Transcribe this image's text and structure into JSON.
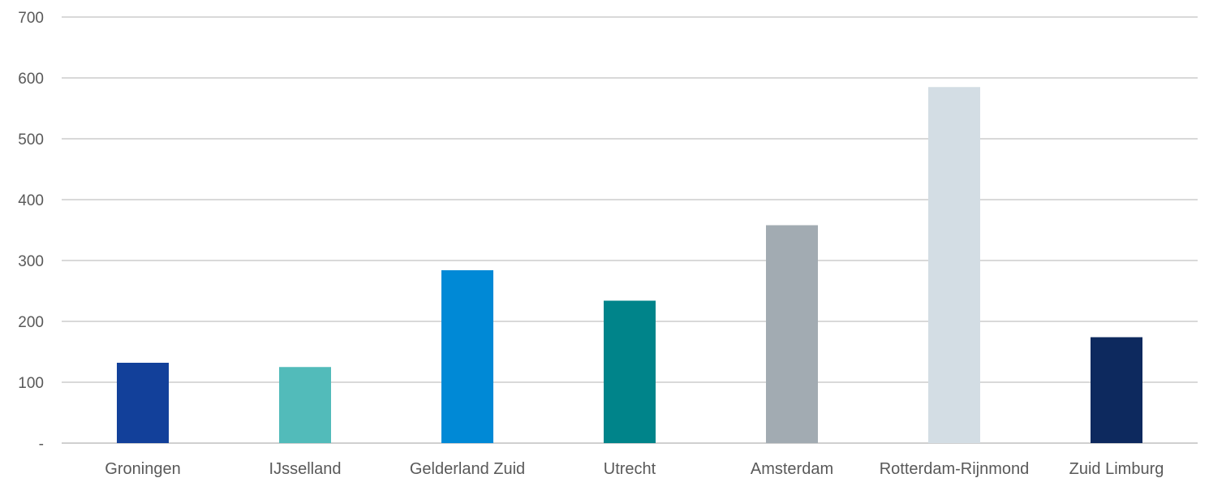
{
  "chart_data": {
    "type": "bar",
    "categories": [
      "Groningen",
      "IJsselland",
      "Gelderland Zuid",
      "Utrecht",
      "Amsterdam",
      "Rotterdam-Rijnmond",
      "Zuid Limburg"
    ],
    "values": [
      132,
      125,
      284,
      234,
      358,
      585,
      174
    ],
    "colors": [
      "#12409a",
      "#52bbba",
      "#0089d6",
      "#00848a",
      "#a2abb2",
      "#d3dde4",
      "#0d295e"
    ],
    "ylim": [
      0,
      700
    ],
    "yticks": [
      0,
      100,
      200,
      300,
      400,
      500,
      600,
      700
    ],
    "ytick_labels": [
      "-",
      "100",
      "200",
      "300",
      "400",
      "500",
      "600",
      "700"
    ],
    "grid": true,
    "legend": false
  }
}
